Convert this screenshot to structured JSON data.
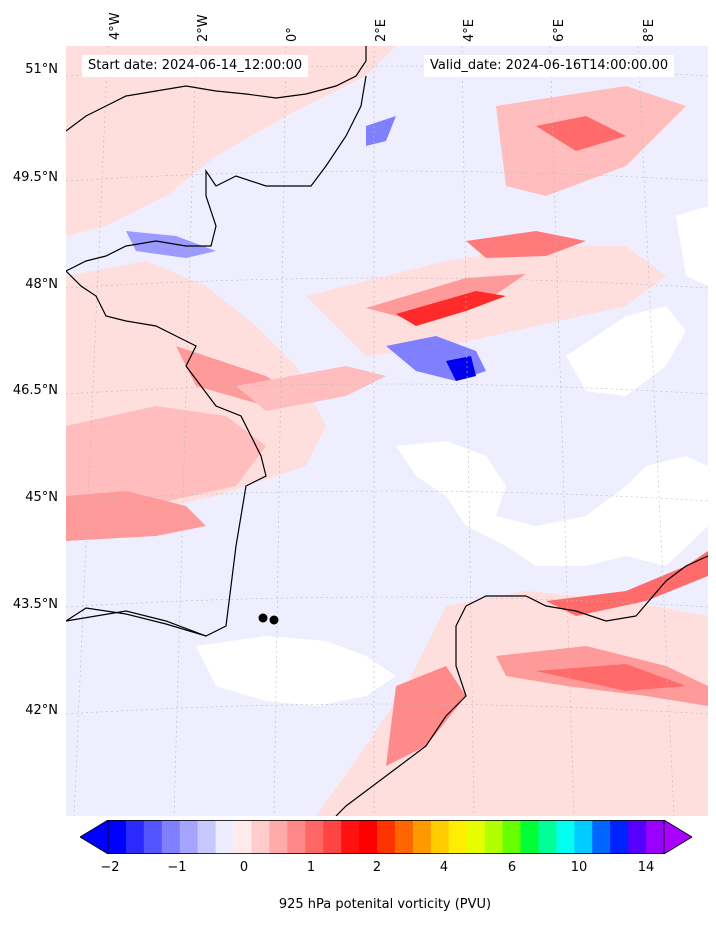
{
  "header": {
    "start_date": "Start date: 2024-06-14_12:00:00",
    "valid_date": "Valid_date: 2024-06-16T14:00:00.00"
  },
  "lon_labels": [
    "4°W",
    "2°W",
    "0°",
    "2°E",
    "4°E",
    "6°E",
    "8°E"
  ],
  "lat_labels": [
    "51°N",
    "49.5°N",
    "48°N",
    "46.5°N",
    "45°N",
    "43.5°N",
    "42°N"
  ],
  "colorbar": {
    "label": "925 hPa potenital vorticity (PVU)",
    "ticks": [
      "−2",
      "−1",
      "0",
      "1",
      "2",
      "4",
      "6",
      "10",
      "14"
    ],
    "colors": [
      "#0000ff",
      "#2a2aff",
      "#5555ff",
      "#7f7fff",
      "#a5a5ff",
      "#c8c8ff",
      "#ededff",
      "#ffeaea",
      "#ffcccc",
      "#ffaaaa",
      "#ff8888",
      "#ff6666",
      "#ff4444",
      "#ff1111",
      "#ff0000",
      "#ff3300",
      "#ff6600",
      "#ff9900",
      "#ffcc00",
      "#ffee00",
      "#e5ff00",
      "#b2ff00",
      "#66ff00",
      "#00ff33",
      "#00ff99",
      "#00ffee",
      "#00ccff",
      "#0066ff",
      "#0022ff",
      "#5500ff",
      "#9900ff"
    ],
    "under_color": "#0000ff",
    "over_color": "#aa00ff"
  },
  "map_colors": {
    "background": "#eeeeff",
    "positive_light": "#ffdede",
    "positive_mid": "#ff8a8a",
    "positive_strong": "#ff2020",
    "negative_mid": "#8080ff",
    "negative_strong": "#0000ee",
    "missing": "#ffffff",
    "coast": "#000000"
  }
}
